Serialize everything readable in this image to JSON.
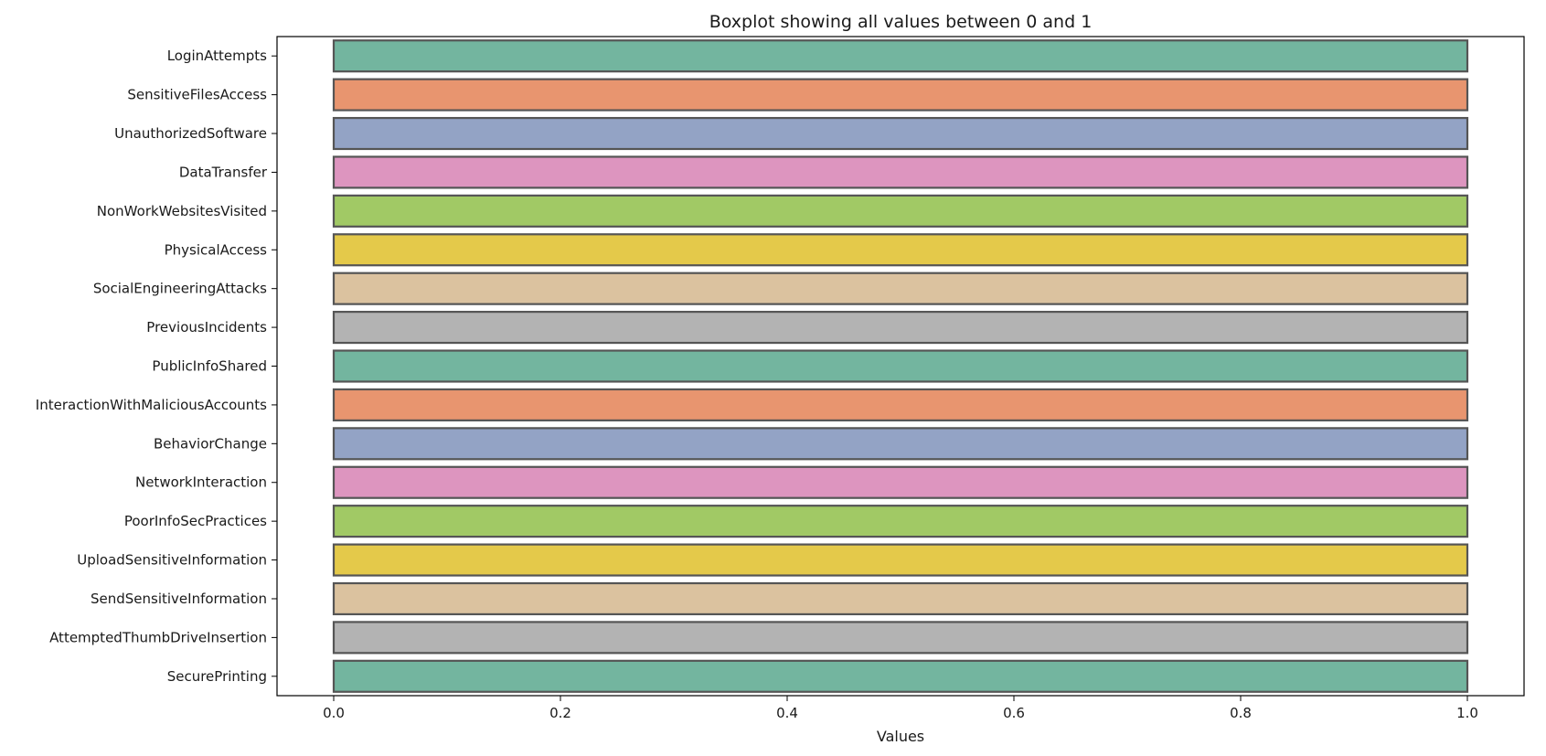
{
  "chart_data": {
    "type": "boxplot",
    "orientation": "horizontal",
    "title": "Boxplot showing all values between 0 and 1",
    "xlabel": "Values",
    "ylabel": "",
    "xlim": [
      -0.05,
      1.05
    ],
    "xticks": [
      0.0,
      0.2,
      0.4,
      0.6,
      0.8,
      1.0
    ],
    "xtick_labels": [
      "0.0",
      "0.2",
      "0.4",
      "0.6",
      "0.8",
      "1.0"
    ],
    "grid": false,
    "legend": "none",
    "categories": [
      "LoginAttempts",
      "SensitiveFilesAccess",
      "UnauthorizedSoftware",
      "DataTransfer",
      "NonWorkWebsitesVisited",
      "PhysicalAccess",
      "SocialEngineeringAttacks",
      "PreviousIncidents",
      "PublicInfoShared",
      "InteractionWithMaliciousAccounts",
      "BehaviorChange",
      "NetworkInteraction",
      "PoorInfoSecPractices",
      "UploadSensitiveInformation",
      "SendSensitiveInformation",
      "AttemptedThumbDriveInsertion",
      "SecurePrinting"
    ],
    "boxes": [
      {
        "q1": 0.0,
        "q3": 1.0,
        "min": 0.0,
        "max": 1.0,
        "color": "#73b59f"
      },
      {
        "q1": 0.0,
        "q3": 1.0,
        "min": 0.0,
        "max": 1.0,
        "color": "#e8956f"
      },
      {
        "q1": 0.0,
        "q3": 1.0,
        "min": 0.0,
        "max": 1.0,
        "color": "#93a3c5"
      },
      {
        "q1": 0.0,
        "q3": 1.0,
        "min": 0.0,
        "max": 1.0,
        "color": "#dd95bf"
      },
      {
        "q1": 0.0,
        "q3": 1.0,
        "min": 0.0,
        "max": 1.0,
        "color": "#a1c965"
      },
      {
        "q1": 0.0,
        "q3": 1.0,
        "min": 0.0,
        "max": 1.0,
        "color": "#e4c94a"
      },
      {
        "q1": 0.0,
        "q3": 1.0,
        "min": 0.0,
        "max": 1.0,
        "color": "#dbc29f"
      },
      {
        "q1": 0.0,
        "q3": 1.0,
        "min": 0.0,
        "max": 1.0,
        "color": "#b3b3b3"
      },
      {
        "q1": 0.0,
        "q3": 1.0,
        "min": 0.0,
        "max": 1.0,
        "color": "#73b59f"
      },
      {
        "q1": 0.0,
        "q3": 1.0,
        "min": 0.0,
        "max": 1.0,
        "color": "#e8956f"
      },
      {
        "q1": 0.0,
        "q3": 1.0,
        "min": 0.0,
        "max": 1.0,
        "color": "#93a3c5"
      },
      {
        "q1": 0.0,
        "q3": 1.0,
        "min": 0.0,
        "max": 1.0,
        "color": "#dd95bf"
      },
      {
        "q1": 0.0,
        "q3": 1.0,
        "min": 0.0,
        "max": 1.0,
        "color": "#a1c965"
      },
      {
        "q1": 0.0,
        "q3": 1.0,
        "min": 0.0,
        "max": 1.0,
        "color": "#e4c94a"
      },
      {
        "q1": 0.0,
        "q3": 1.0,
        "min": 0.0,
        "max": 1.0,
        "color": "#dbc29f"
      },
      {
        "q1": 0.0,
        "q3": 1.0,
        "min": 0.0,
        "max": 1.0,
        "color": "#b3b3b3"
      },
      {
        "q1": 0.0,
        "q3": 1.0,
        "min": 0.0,
        "max": 1.0,
        "color": "#73b59f"
      }
    ],
    "box_edge_color": "#555555"
  }
}
